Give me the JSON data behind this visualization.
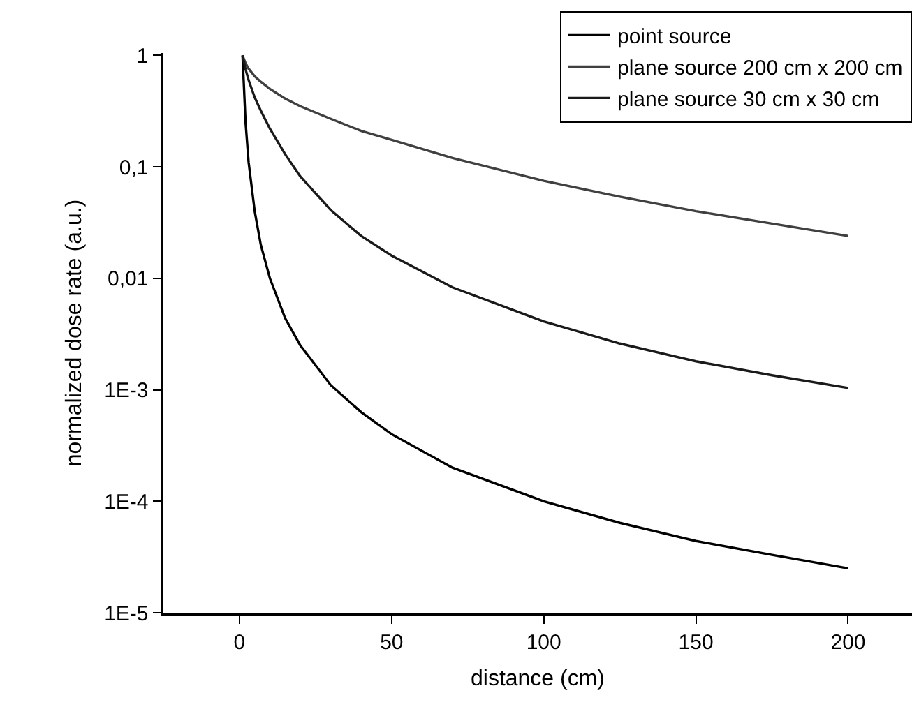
{
  "chart_data": {
    "type": "line",
    "xlabel": "distance (cm)",
    "ylabel": "normalized dose rate (a.u.)",
    "x": [
      1,
      2,
      3,
      5,
      7,
      10,
      15,
      20,
      30,
      40,
      50,
      70,
      100,
      125,
      150,
      175,
      200
    ],
    "series": [
      {
        "name": "point source",
        "color": "#000000",
        "values": [
          1,
          0.25,
          0.11,
          0.04,
          0.02,
          0.01,
          0.0044,
          0.0025,
          0.0011,
          0.00063,
          0.0004,
          0.0002,
          0.0001,
          6.4e-05,
          4.4e-05,
          3.3e-05,
          2.5e-05
        ]
      },
      {
        "name": "plane source 200 cm x 200 cm",
        "color": "#404040",
        "values": [
          1,
          0.85,
          0.76,
          0.65,
          0.58,
          0.5,
          0.41,
          0.35,
          0.27,
          0.21,
          0.175,
          0.12,
          0.075,
          0.054,
          0.04,
          0.031,
          0.024
        ]
      },
      {
        "name": "plane source 30 cm x 30 cm",
        "color": "#1a1a1a",
        "values": [
          1,
          0.75,
          0.6,
          0.42,
          0.32,
          0.22,
          0.13,
          0.082,
          0.041,
          0.024,
          0.016,
          0.0083,
          0.0041,
          0.0026,
          0.0018,
          0.00135,
          0.00104
        ]
      }
    ],
    "log": "y",
    "xlim": [
      -25,
      221
    ],
    "xticks": [
      0,
      50,
      100,
      150,
      200
    ],
    "ylim": [
      1e-05,
      1.05
    ],
    "yticks": [
      {
        "value": 1,
        "label": "1"
      },
      {
        "value": 0.1,
        "label": "0,1"
      },
      {
        "value": 0.01,
        "label": "0,01"
      },
      {
        "value": 0.001,
        "label": "1E-3"
      },
      {
        "value": 0.0001,
        "label": "1E-4"
      },
      {
        "value": 1e-05,
        "label": "1E-5"
      }
    ],
    "legend": "top right",
    "marker": "none",
    "line_style": "solid"
  }
}
